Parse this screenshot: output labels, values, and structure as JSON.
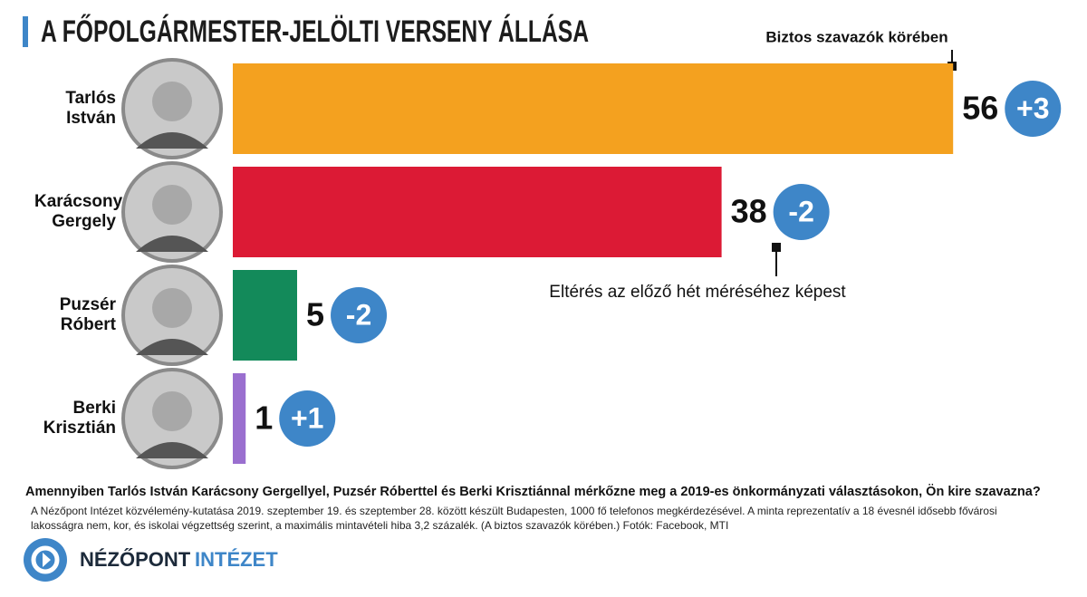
{
  "chart_data": {
    "type": "bar",
    "orientation": "horizontal",
    "title": "A FŐPOLGÁRMESTER-JELÖLTI VERSENY ÁLLÁSA",
    "categories": [
      "Tarlós István",
      "Karácsony Gergely",
      "Puzsér Róbert",
      "Berki Krisztián"
    ],
    "values": [
      56,
      38,
      5,
      1
    ],
    "colors": [
      "#f4a11f",
      "#dc1a35",
      "#138a5a",
      "#9a6fcf"
    ],
    "changes": [
      3,
      -2,
      -2,
      1
    ],
    "change_labels": [
      "+3",
      "-2",
      "-2",
      "+1"
    ],
    "change_color": "#3e86c8",
    "annotations": [
      "Biztos szavazók körében",
      "Eltérés az előző hét méréséhez képest"
    ],
    "question": "Amennyiben Tarlós István Karácsony Gergellyel, Puzsér Róberttel és Berki Krisztiánnal mérkőzne meg a 2019-es önkormányzati választásokon, Ön kire szavazna?",
    "note": "A Nézőpont Intézet közvélemény-kutatása 2019. szeptember 19. és szeptember 28. között készült Budapesten, 1000 fő telefonos megkérdezésével. A minta reprezentatív a 18 évesnél idősebb fővárosi lakosságra nem, kor, és iskolai végzettség szerint, a maximális mintavételi hiba 3,2 százalék. (A biztos szavazók körében.) Fotók: Facebook, MTI",
    "logo": [
      "NÉZŐPONT",
      "INTÉZET"
    ]
  }
}
